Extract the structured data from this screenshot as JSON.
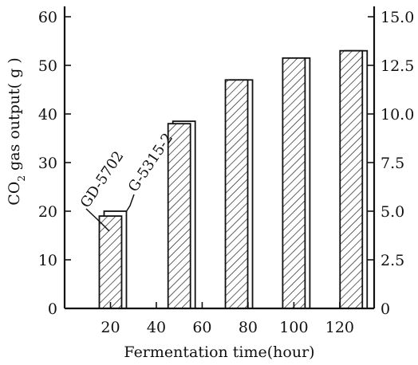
{
  "chart_data": {
    "type": "bar",
    "categories": [
      20,
      50,
      75,
      100,
      125
    ],
    "series": [
      {
        "name": "GD-5702",
        "values": [
          19,
          38,
          47,
          51.5,
          53
        ]
      },
      {
        "name": "G-5315-2",
        "values": [
          20,
          38.5,
          47,
          51.5,
          53
        ]
      }
    ],
    "xlabel": "Fermentation time(hour)",
    "ylabel": "CO",
    "ylabel_sub": "2",
    "ylabel_rest": " gas output( g )",
    "xticks": [
      20,
      40,
      60,
      80,
      100,
      120
    ],
    "xtick_labels": [
      "20",
      "40",
      "60",
      "80",
      "100",
      "120"
    ],
    "xlim": [
      0,
      135
    ],
    "ylim": [
      0,
      62
    ],
    "yticks": [
      0,
      10,
      20,
      30,
      40,
      50,
      60
    ],
    "ytick_labels": [
      "0",
      "10",
      "20",
      "30",
      "40",
      "50",
      "60"
    ],
    "y2ticks": [
      0,
      2.5,
      5.0,
      7.5,
      10.0,
      12.5,
      15.0
    ],
    "y2tick_labels": [
      "0",
      "2.5",
      "5.0",
      "7.5",
      "10.0",
      "12.5",
      "15.0"
    ],
    "y2lim": [
      0,
      15.5
    ],
    "annotations": [
      "GD-5702",
      "G-5315-2"
    ],
    "grid": false,
    "legend": "none"
  }
}
